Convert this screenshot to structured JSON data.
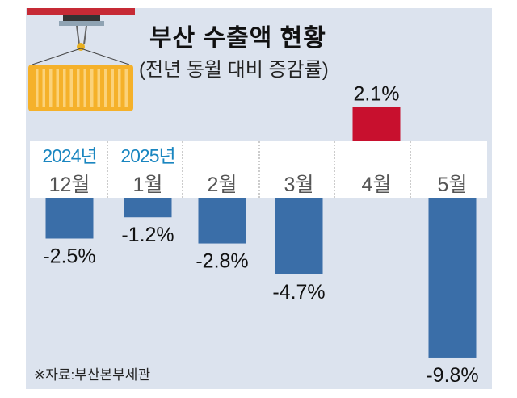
{
  "chart_data": {
    "type": "bar",
    "title": "부산 수출액 현황",
    "subtitle": "(전년 동월 대비 증감률)",
    "categories": [
      "12월",
      "1월",
      "2월",
      "3월",
      "4월",
      "5월"
    ],
    "year_labels": [
      "2024년",
      "2025년",
      "",
      "",
      "",
      ""
    ],
    "values": [
      -2.5,
      -1.2,
      -2.8,
      -4.7,
      2.1,
      -9.8
    ],
    "value_labels": [
      "-2.5%",
      "-1.2%",
      "-2.8%",
      "-4.7%",
      "2.1%",
      "-9.8%"
    ],
    "unit": "%",
    "colors": {
      "negative": "#3a6ea8",
      "positive": "#c8102e",
      "year": "#1a86c0",
      "month": "#555555"
    },
    "source": "※자료:부산본부세관"
  }
}
